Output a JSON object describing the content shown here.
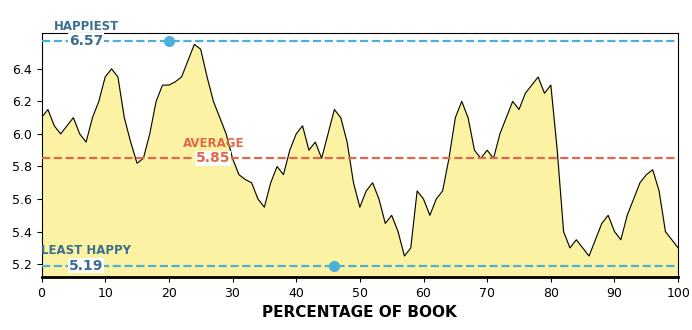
{
  "chart_data": {
    "type": "area",
    "x_label": "PERCENTAGE OF BOOK",
    "x": [
      0,
      1,
      2,
      3,
      4,
      5,
      6,
      7,
      8,
      9,
      10,
      11,
      12,
      13,
      14,
      15,
      16,
      17,
      18,
      19,
      20,
      21,
      22,
      23,
      24,
      25,
      26,
      27,
      28,
      29,
      30,
      31,
      32,
      33,
      34,
      35,
      36,
      37,
      38,
      39,
      40,
      41,
      42,
      43,
      44,
      45,
      46,
      47,
      48,
      49,
      50,
      51,
      52,
      53,
      54,
      55,
      56,
      57,
      58,
      59,
      60,
      61,
      62,
      63,
      64,
      65,
      66,
      67,
      68,
      69,
      70,
      71,
      72,
      73,
      74,
      75,
      76,
      77,
      78,
      79,
      80,
      81,
      82,
      83,
      84,
      85,
      86,
      87,
      88,
      89,
      90,
      91,
      92,
      93,
      94,
      95,
      96,
      97,
      98,
      99,
      100
    ],
    "values": [
      6.1,
      6.15,
      6.05,
      6.0,
      6.05,
      6.1,
      6.0,
      5.95,
      6.1,
      6.2,
      6.35,
      6.4,
      6.35,
      6.1,
      5.95,
      5.82,
      5.85,
      6.0,
      6.2,
      6.3,
      6.3,
      6.32,
      6.35,
      6.45,
      6.55,
      6.52,
      6.35,
      6.2,
      6.1,
      6.0,
      5.85,
      5.75,
      5.72,
      5.7,
      5.6,
      5.55,
      5.7,
      5.8,
      5.75,
      5.9,
      6.0,
      6.05,
      5.9,
      5.95,
      5.85,
      6.0,
      6.15,
      6.1,
      5.95,
      5.7,
      5.55,
      5.65,
      5.7,
      5.6,
      5.45,
      5.5,
      5.4,
      5.25,
      5.3,
      5.65,
      5.6,
      5.5,
      5.6,
      5.65,
      5.85,
      6.1,
      6.2,
      6.1,
      5.9,
      5.85,
      5.9,
      5.85,
      6.0,
      6.1,
      6.2,
      6.15,
      6.25,
      6.3,
      6.35,
      6.25,
      6.3,
      5.9,
      5.4,
      5.3,
      5.35,
      5.3,
      5.25,
      5.35,
      5.45,
      5.5,
      5.4,
      5.35,
      5.5,
      5.6,
      5.7,
      5.75,
      5.78,
      5.65,
      5.4,
      5.35,
      5.3
    ],
    "color": "#fbf3a3",
    "xlim": [
      0,
      100
    ],
    "xticks": [
      0,
      10,
      20,
      30,
      40,
      50,
      60,
      70,
      80,
      90,
      100
    ],
    "ylim": [
      5.12,
      6.62
    ],
    "yticks": [
      5.2,
      5.4,
      5.6,
      5.8,
      6.0,
      6.2,
      6.4
    ],
    "reference_lines": [
      {
        "label": "HAPPIEST",
        "value": 6.57,
        "color": "#4db0d8",
        "text_color": "#3a6f8e",
        "label_x": 7,
        "marker_x": 20
      },
      {
        "label": "AVERAGE",
        "value": 5.85,
        "color": "#e2674b",
        "text_color": "#e2674b",
        "label_x": 27
      },
      {
        "label": "LEAST HAPPY",
        "value": 5.19,
        "color": "#4db0d8",
        "text_color": "#3a6f8e",
        "label_x": 7,
        "marker_x": 46
      }
    ]
  }
}
